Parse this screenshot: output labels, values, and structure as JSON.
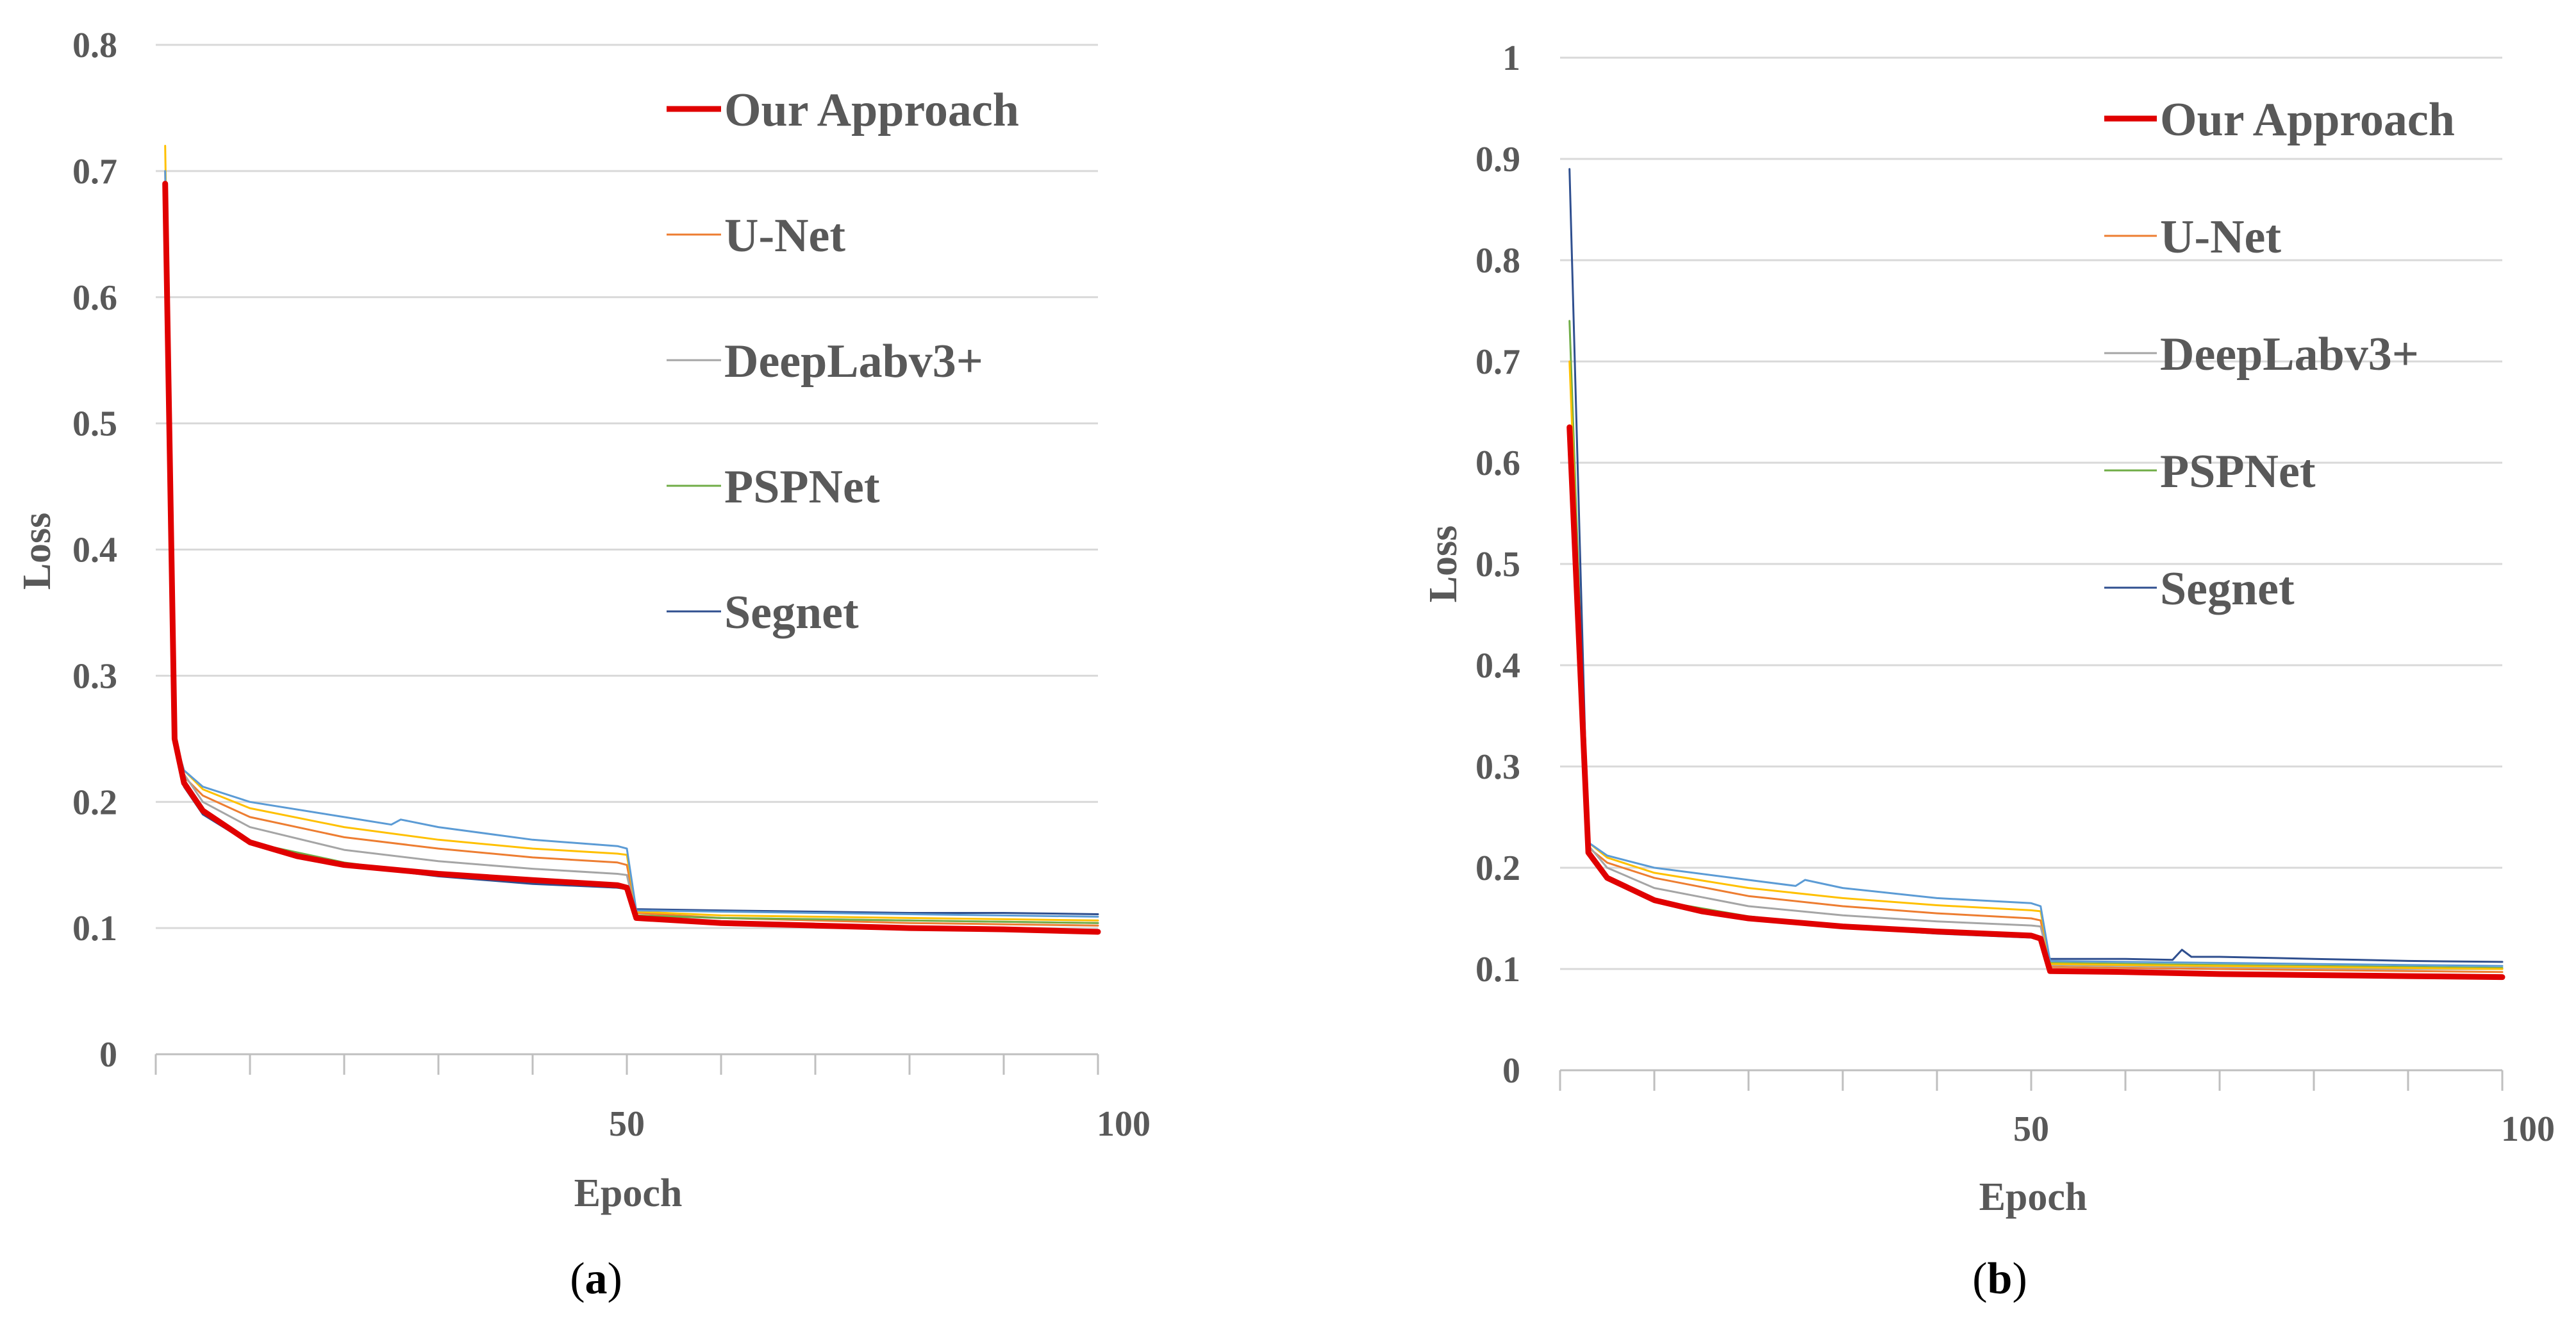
{
  "chart_data": [
    {
      "type": "line",
      "panel_label": {
        "open": "(",
        "letter": "a",
        "close": ")"
      },
      "xlabel": "Epoch",
      "ylabel": "Loss",
      "xlim": [
        0,
        100
      ],
      "ylim": [
        0,
        0.8
      ],
      "y_ticks": [
        "0",
        "0.1",
        "0.2",
        "0.3",
        "0.4",
        "0.5",
        "0.6",
        "0.7",
        "0.8"
      ],
      "x_tick_labels": [
        "50",
        "100"
      ],
      "grid": true,
      "legend_position": "top-right",
      "step_epoch": 50,
      "series": [
        {
          "name": "Our Approach",
          "color": "#e00000",
          "width": 9,
          "values": [
            [
              1,
              0.69
            ],
            [
              2,
              0.25
            ],
            [
              3,
              0.215
            ],
            [
              5,
              0.193
            ],
            [
              10,
              0.168
            ],
            [
              15,
              0.157
            ],
            [
              20,
              0.15
            ],
            [
              30,
              0.143
            ],
            [
              40,
              0.138
            ],
            [
              49,
              0.134
            ],
            [
              50,
              0.132
            ],
            [
              51,
              0.108
            ],
            [
              60,
              0.104
            ],
            [
              70,
              0.102
            ],
            [
              80,
              0.1
            ],
            [
              90,
              0.099
            ],
            [
              100,
              0.097
            ]
          ]
        },
        {
          "name": "U-Net",
          "color": "#ed7d31",
          "width": 3,
          "values": [
            [
              1,
              0.7
            ],
            [
              2,
              0.25
            ],
            [
              3,
              0.22
            ],
            [
              5,
              0.205
            ],
            [
              10,
              0.188
            ],
            [
              20,
              0.172
            ],
            [
              30,
              0.163
            ],
            [
              40,
              0.156
            ],
            [
              49,
              0.152
            ],
            [
              50,
              0.15
            ],
            [
              51,
              0.112
            ],
            [
              60,
              0.108
            ],
            [
              70,
              0.106
            ],
            [
              80,
              0.104
            ],
            [
              90,
              0.103
            ],
            [
              100,
              0.102
            ]
          ]
        },
        {
          "name": "DeepLabv3+",
          "color": "#a5a5a5",
          "width": 3,
          "values": [
            [
              1,
              0.66
            ],
            [
              2,
              0.25
            ],
            [
              3,
              0.222
            ],
            [
              5,
              0.2
            ],
            [
              10,
              0.18
            ],
            [
              20,
              0.162
            ],
            [
              30,
              0.153
            ],
            [
              40,
              0.147
            ],
            [
              49,
              0.143
            ],
            [
              50,
              0.142
            ],
            [
              51,
              0.11
            ],
            [
              60,
              0.108
            ],
            [
              70,
              0.107
            ],
            [
              80,
              0.106
            ],
            [
              90,
              0.105
            ],
            [
              100,
              0.104
            ]
          ]
        },
        {
          "name": "PSPNet",
          "color": "#70ad47",
          "width": 3,
          "values": [
            [
              1,
              0.63
            ],
            [
              2,
              0.25
            ],
            [
              3,
              0.215
            ],
            [
              5,
              0.192
            ],
            [
              10,
              0.168
            ],
            [
              20,
              0.152
            ],
            [
              30,
              0.142
            ],
            [
              40,
              0.136
            ],
            [
              49,
              0.132
            ],
            [
              50,
              0.131
            ],
            [
              51,
              0.11
            ],
            [
              60,
              0.108
            ],
            [
              70,
              0.107
            ],
            [
              80,
              0.106
            ],
            [
              90,
              0.105
            ],
            [
              100,
              0.104
            ]
          ]
        },
        {
          "name": "Segnet",
          "color": "#2f4f8f",
          "width": 3,
          "values": [
            [
              1,
              0.62
            ],
            [
              2,
              0.25
            ],
            [
              3,
              0.212
            ],
            [
              5,
              0.19
            ],
            [
              10,
              0.167
            ],
            [
              20,
              0.15
            ],
            [
              30,
              0.141
            ],
            [
              40,
              0.135
            ],
            [
              49,
              0.132
            ],
            [
              50,
              0.131
            ],
            [
              51,
              0.115
            ],
            [
              60,
              0.114
            ],
            [
              70,
              0.113
            ],
            [
              80,
              0.112
            ],
            [
              90,
              0.112
            ],
            [
              100,
              0.111
            ]
          ]
        },
        {
          "name": "",
          "color": "#ffc000",
          "width": 3,
          "values": [
            [
              1,
              0.72
            ],
            [
              2,
              0.25
            ],
            [
              3,
              0.225
            ],
            [
              5,
              0.21
            ],
            [
              10,
              0.195
            ],
            [
              20,
              0.18
            ],
            [
              30,
              0.17
            ],
            [
              40,
              0.163
            ],
            [
              49,
              0.159
            ],
            [
              50,
              0.158
            ],
            [
              51,
              0.113
            ],
            [
              60,
              0.11
            ],
            [
              70,
              0.109
            ],
            [
              80,
              0.108
            ],
            [
              90,
              0.107
            ],
            [
              100,
              0.106
            ]
          ]
        },
        {
          "name": "",
          "color": "#5b9bd5",
          "width": 3,
          "values": [
            [
              1,
              0.7
            ],
            [
              2,
              0.25
            ],
            [
              3,
              0.225
            ],
            [
              5,
              0.212
            ],
            [
              10,
              0.2
            ],
            [
              20,
              0.188
            ],
            [
              25,
              0.182
            ],
            [
              26,
              0.186
            ],
            [
              30,
              0.18
            ],
            [
              40,
              0.17
            ],
            [
              49,
              0.165
            ],
            [
              50,
              0.163
            ],
            [
              51,
              0.114
            ],
            [
              60,
              0.113
            ],
            [
              70,
              0.112
            ],
            [
              80,
              0.111
            ],
            [
              90,
              0.11
            ],
            [
              100,
              0.109
            ]
          ]
        }
      ]
    },
    {
      "type": "line",
      "panel_label": {
        "open": "(",
        "letter": "b",
        "close": ")"
      },
      "xlabel": "Epoch",
      "ylabel": "Loss",
      "xlim": [
        0,
        100
      ],
      "ylim": [
        0,
        1
      ],
      "y_ticks": [
        "0",
        "0.1",
        "0.2",
        "0.3",
        "0.4",
        "0.5",
        "0.6",
        "0.7",
        "0.8",
        "0.9",
        "1"
      ],
      "x_tick_labels": [
        "50",
        "100"
      ],
      "grid": true,
      "legend_position": "top-right",
      "step_epoch": 51,
      "series": [
        {
          "name": "Our Approach",
          "color": "#e00000",
          "width": 9,
          "values": [
            [
              1,
              0.635
            ],
            [
              3,
              0.215
            ],
            [
              5,
              0.19
            ],
            [
              10,
              0.168
            ],
            [
              15,
              0.157
            ],
            [
              20,
              0.15
            ],
            [
              30,
              0.142
            ],
            [
              40,
              0.137
            ],
            [
              50,
              0.133
            ],
            [
              51,
              0.13
            ],
            [
              52,
              0.098
            ],
            [
              60,
              0.097
            ],
            [
              70,
              0.095
            ],
            [
              80,
              0.094
            ],
            [
              90,
              0.093
            ],
            [
              100,
              0.092
            ]
          ]
        },
        {
          "name": "U-Net",
          "color": "#ed7d31",
          "width": 3,
          "values": [
            [
              1,
              0.62
            ],
            [
              3,
              0.22
            ],
            [
              5,
              0.205
            ],
            [
              10,
              0.19
            ],
            [
              20,
              0.172
            ],
            [
              30,
              0.162
            ],
            [
              40,
              0.155
            ],
            [
              50,
              0.15
            ],
            [
              51,
              0.148
            ],
            [
              52,
              0.102
            ],
            [
              60,
              0.101
            ],
            [
              70,
              0.1
            ],
            [
              80,
              0.099
            ],
            [
              90,
              0.098
            ],
            [
              100,
              0.097
            ]
          ]
        },
        {
          "name": "DeepLabv3+",
          "color": "#a5a5a5",
          "width": 3,
          "values": [
            [
              1,
              0.6
            ],
            [
              3,
              0.222
            ],
            [
              5,
              0.2
            ],
            [
              10,
              0.18
            ],
            [
              20,
              0.162
            ],
            [
              30,
              0.153
            ],
            [
              40,
              0.147
            ],
            [
              50,
              0.143
            ],
            [
              51,
              0.142
            ],
            [
              52,
              0.104
            ],
            [
              60,
              0.103
            ],
            [
              70,
              0.102
            ],
            [
              80,
              0.101
            ],
            [
              90,
              0.1
            ],
            [
              100,
              0.1
            ]
          ]
        },
        {
          "name": "PSPNet",
          "color": "#70ad47",
          "width": 3,
          "values": [
            [
              1,
              0.74
            ],
            [
              3,
              0.215
            ],
            [
              5,
              0.192
            ],
            [
              10,
              0.168
            ],
            [
              20,
              0.152
            ],
            [
              30,
              0.142
            ],
            [
              40,
              0.136
            ],
            [
              50,
              0.132
            ],
            [
              51,
              0.131
            ],
            [
              52,
              0.106
            ],
            [
              60,
              0.105
            ],
            [
              70,
              0.104
            ],
            [
              80,
              0.103
            ],
            [
              90,
              0.102
            ],
            [
              100,
              0.101
            ]
          ]
        },
        {
          "name": "Segnet",
          "color": "#2f4f8f",
          "width": 3,
          "values": [
            [
              1,
              0.89
            ],
            [
              3,
              0.212
            ],
            [
              5,
              0.19
            ],
            [
              10,
              0.167
            ],
            [
              20,
              0.15
            ],
            [
              30,
              0.141
            ],
            [
              40,
              0.135
            ],
            [
              50,
              0.131
            ],
            [
              51,
              0.13
            ],
            [
              52,
              0.11
            ],
            [
              60,
              0.11
            ],
            [
              65,
              0.109
            ],
            [
              66,
              0.119
            ],
            [
              67,
              0.112
            ],
            [
              70,
              0.112
            ],
            [
              80,
              0.11
            ],
            [
              90,
              0.108
            ],
            [
              100,
              0.107
            ]
          ]
        },
        {
          "name": "",
          "color": "#ffc000",
          "width": 3,
          "values": [
            [
              1,
              0.7
            ],
            [
              3,
              0.225
            ],
            [
              5,
              0.21
            ],
            [
              10,
              0.195
            ],
            [
              20,
              0.18
            ],
            [
              30,
              0.17
            ],
            [
              40,
              0.163
            ],
            [
              50,
              0.158
            ],
            [
              51,
              0.157
            ],
            [
              52,
              0.105
            ],
            [
              60,
              0.104
            ],
            [
              70,
              0.103
            ],
            [
              80,
              0.102
            ],
            [
              90,
              0.101
            ],
            [
              100,
              0.1
            ]
          ]
        },
        {
          "name": "",
          "color": "#5b9bd5",
          "width": 3,
          "values": [
            [
              1,
              0.6
            ],
            [
              3,
              0.225
            ],
            [
              5,
              0.212
            ],
            [
              10,
              0.2
            ],
            [
              20,
              0.188
            ],
            [
              25,
              0.182
            ],
            [
              26,
              0.188
            ],
            [
              30,
              0.18
            ],
            [
              40,
              0.17
            ],
            [
              50,
              0.165
            ],
            [
              51,
              0.162
            ],
            [
              52,
              0.108
            ],
            [
              60,
              0.107
            ],
            [
              70,
              0.106
            ],
            [
              80,
              0.105
            ],
            [
              90,
              0.104
            ],
            [
              100,
              0.103
            ]
          ]
        }
      ]
    }
  ]
}
